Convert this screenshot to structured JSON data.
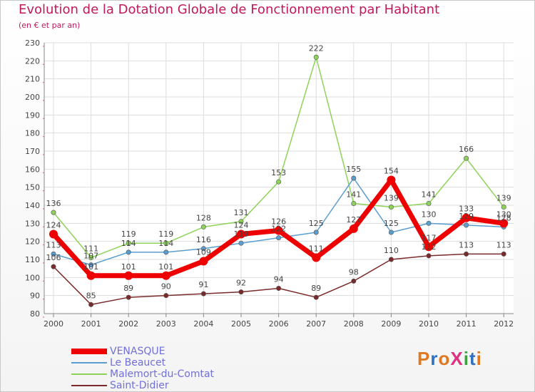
{
  "title": "Evolution de la Dotation Globale de Fonctionnement par Habitant",
  "subtitle": "(en € et par an)",
  "logo": {
    "text": "ProXiti",
    "letters": [
      {
        "ch": "P",
        "color": "#e07820"
      },
      {
        "ch": "r",
        "color": "#3070c0"
      },
      {
        "ch": "o",
        "color": "#e07820"
      },
      {
        "ch": "X",
        "color": "#e03080"
      },
      {
        "ch": "i",
        "color": "#40a040"
      },
      {
        "ch": "t",
        "color": "#3070c0"
      },
      {
        "ch": "i",
        "color": "#e07820"
      }
    ]
  },
  "chart_data": {
    "type": "line",
    "title": "Evolution de la Dotation Globale de Fonctionnement par Habitant",
    "subtitle": "(en € et par an)",
    "xlabel": "",
    "ylabel": "",
    "x": [
      "2000",
      "2001",
      "2002",
      "2003",
      "2004",
      "2005",
      "2006",
      "2007",
      "2008",
      "2009",
      "2010",
      "2011",
      "2012"
    ],
    "ylim": [
      80,
      230
    ],
    "yticks": [
      80,
      90,
      100,
      110,
      120,
      130,
      140,
      150,
      160,
      170,
      180,
      190,
      200,
      210,
      220,
      230
    ],
    "grid": true,
    "legend_position": "bottom-left",
    "series": [
      {
        "name": "VENASQUE",
        "color": "#ee0000",
        "bold": true,
        "values": [
          124,
          101,
          101,
          101,
          109,
          124,
          126,
          111,
          127,
          154,
          117,
          133,
          130
        ]
      },
      {
        "name": "Le Beaucet",
        "color": "#5a9ecf",
        "bold": false,
        "values": [
          113,
          107,
          114,
          114,
          116,
          119,
          122,
          125,
          155,
          125,
          130,
          129,
          128
        ]
      },
      {
        "name": "Malemort-du-Comtat",
        "color": "#8dd35a",
        "bold": false,
        "values": [
          136,
          111,
          119,
          119,
          128,
          131,
          153,
          222,
          141,
          139,
          141,
          166,
          139
        ]
      },
      {
        "name": "Saint-Didier",
        "color": "#7a2a2a",
        "bold": false,
        "values": [
          106,
          85,
          89,
          90,
          91,
          92,
          94,
          89,
          98,
          110,
          112,
          113,
          113
        ]
      }
    ]
  }
}
